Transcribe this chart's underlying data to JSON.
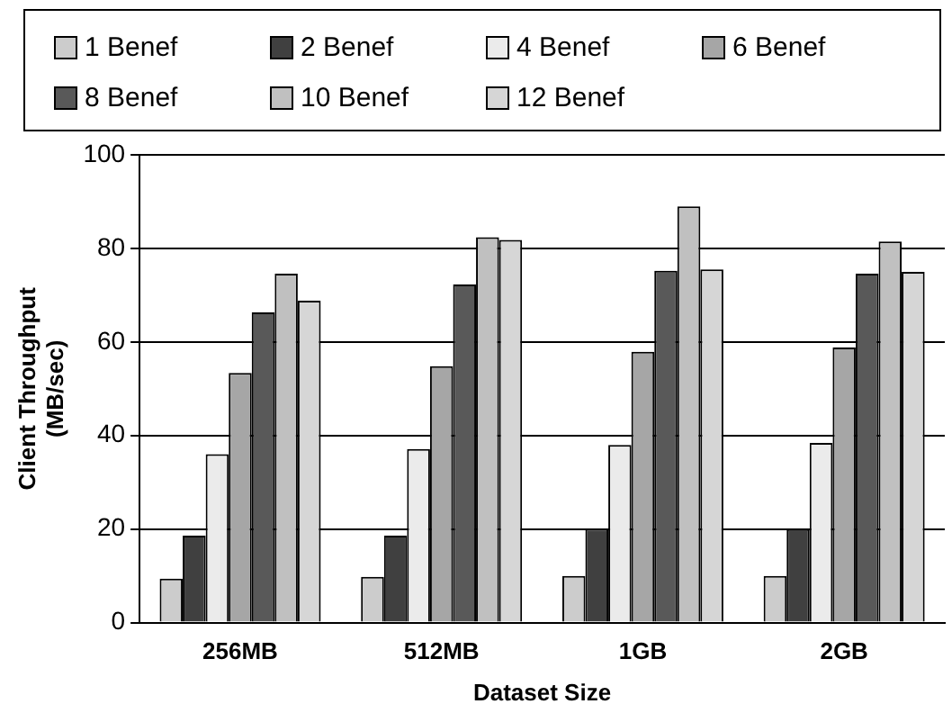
{
  "chart_data": {
    "type": "bar",
    "xlabel": "Dataset Size",
    "ylabel": "Client Throughput\n(MB/sec)",
    "categories": [
      "256MB",
      "512MB",
      "1GB",
      "2GB"
    ],
    "series": [
      {
        "name": "1 Benef",
        "color": "#cccccc",
        "values": [
          9.4,
          9.8,
          10,
          10
        ]
      },
      {
        "name": "2 Benef",
        "color": "#404040",
        "values": [
          18.6,
          18.6,
          20.1,
          20
        ]
      },
      {
        "name": "4 Benef",
        "color": "#ebebeb",
        "values": [
          36,
          37.1,
          38,
          38.4
        ]
      },
      {
        "name": "6 Benef",
        "color": "#a6a6a6",
        "values": [
          53.4,
          54.8,
          57.9,
          58.8
        ]
      },
      {
        "name": "8 Benef",
        "color": "#595959",
        "values": [
          66.3,
          72.3,
          75.2,
          74.6
        ]
      },
      {
        "name": "10 Benef",
        "color": "#c0c0c0",
        "values": [
          74.6,
          82.4,
          89,
          81.5
        ]
      },
      {
        "name": "12 Benef",
        "color": "#d6d6d6",
        "values": [
          68.8,
          81.8,
          75.5,
          75
        ]
      }
    ],
    "ylim": [
      0,
      100
    ],
    "yticks": [
      0,
      20,
      40,
      60,
      80,
      100
    ],
    "grid": "y",
    "legend": "top"
  }
}
